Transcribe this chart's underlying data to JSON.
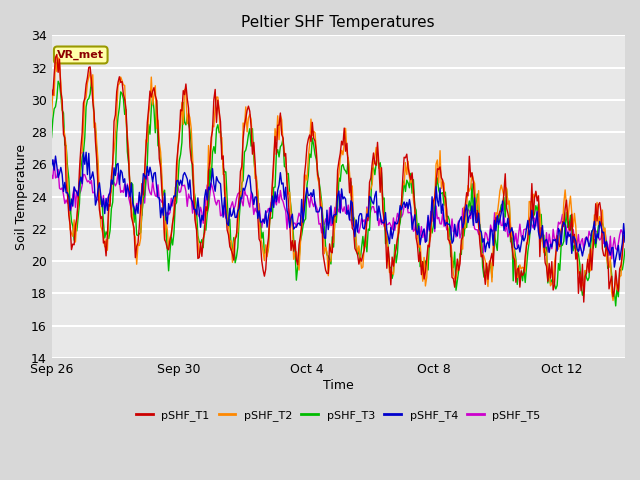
{
  "title": "Peltier SHF Temperatures",
  "xlabel": "Time",
  "ylabel": "Soil Temperature",
  "ylim": [
    14,
    34
  ],
  "yticks": [
    14,
    16,
    18,
    20,
    22,
    24,
    26,
    28,
    30,
    32,
    34
  ],
  "background_color": "#d8d8d8",
  "plot_bg_color": "#e8e8e8",
  "grid_color": "#ffffff",
  "annotation_text": "VR_met",
  "annotation_bg": "#ffffaa",
  "annotation_border": "#999900",
  "legend_entries": [
    "pSHF_T1",
    "pSHF_T2",
    "pSHF_T3",
    "pSHF_T4",
    "pSHF_T5"
  ],
  "line_colors": [
    "#cc0000",
    "#ff8800",
    "#00bb00",
    "#0000cc",
    "#cc00cc"
  ],
  "line_width": 1.0,
  "xtick_labels": [
    "Sep 26",
    "Sep 30",
    "Oct 4",
    "Oct 8",
    "Oct 12"
  ],
  "xtick_positions": [
    0,
    4,
    8,
    12,
    16
  ]
}
